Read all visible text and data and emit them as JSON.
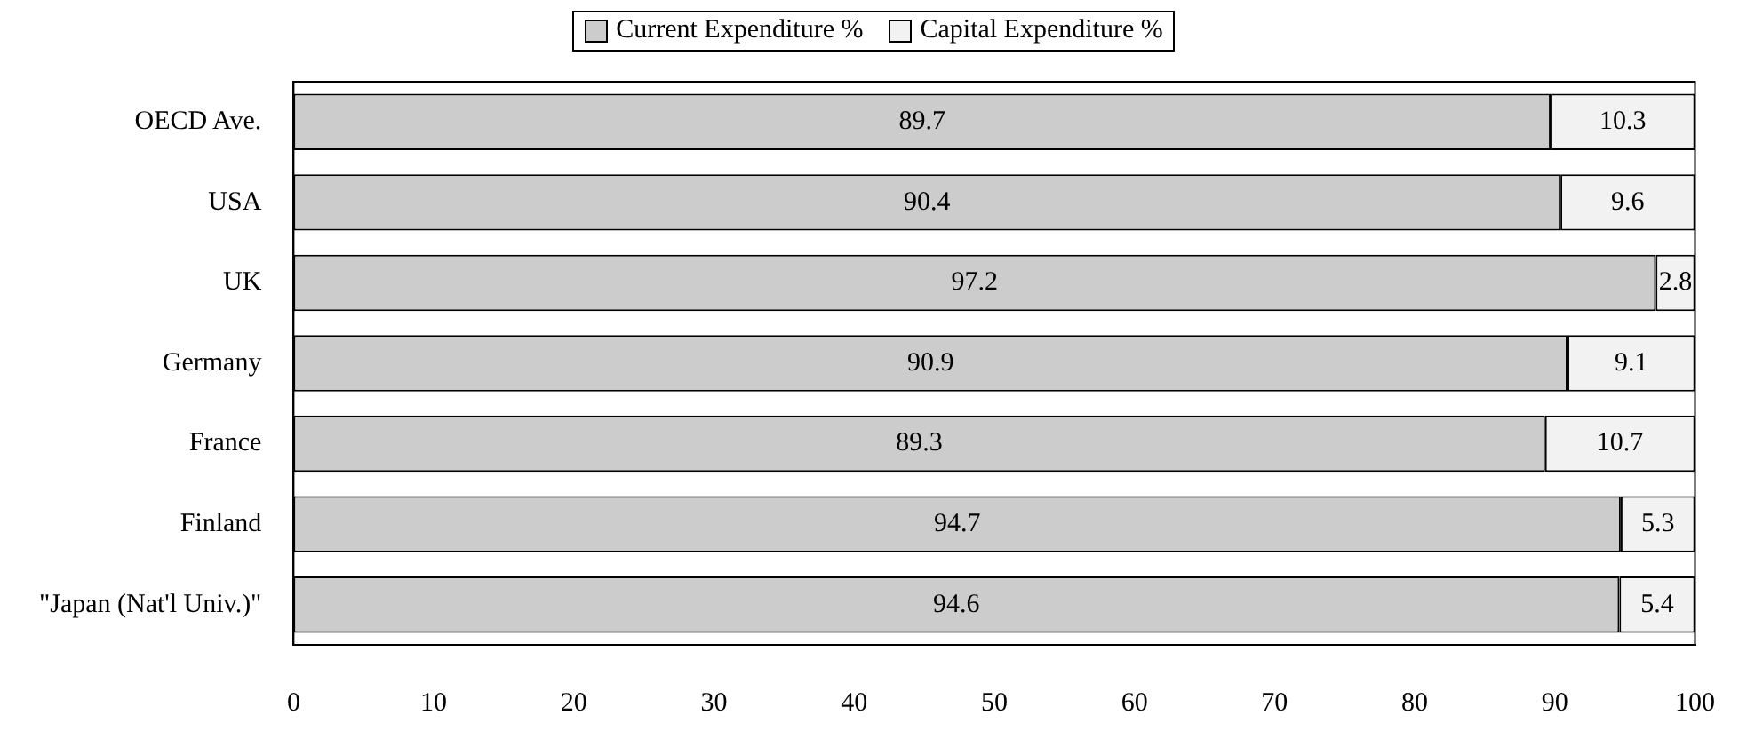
{
  "chart_data": {
    "type": "bar",
    "orientation": "horizontal",
    "stacked": true,
    "categories": [
      "OECD Ave.",
      "USA",
      "UK",
      "Germany",
      "France",
      "Finland",
      "\"Japan (Nat'l Univ.)\""
    ],
    "series": [
      {
        "name": "Current Expenditure %",
        "color": "#cccccc",
        "values": [
          89.7,
          90.4,
          97.2,
          90.9,
          89.3,
          94.7,
          94.6
        ]
      },
      {
        "name": "Capital Expenditure %",
        "color": "#f2f2f2",
        "values": [
          10.3,
          9.6,
          2.8,
          9.1,
          10.7,
          5.3,
          5.4
        ]
      }
    ],
    "xlim": [
      0,
      100
    ],
    "xticks": [
      0,
      10,
      20,
      30,
      40,
      50,
      60,
      70,
      80,
      90,
      100
    ],
    "grid": false,
    "legend": "top",
    "data_labels": true
  }
}
